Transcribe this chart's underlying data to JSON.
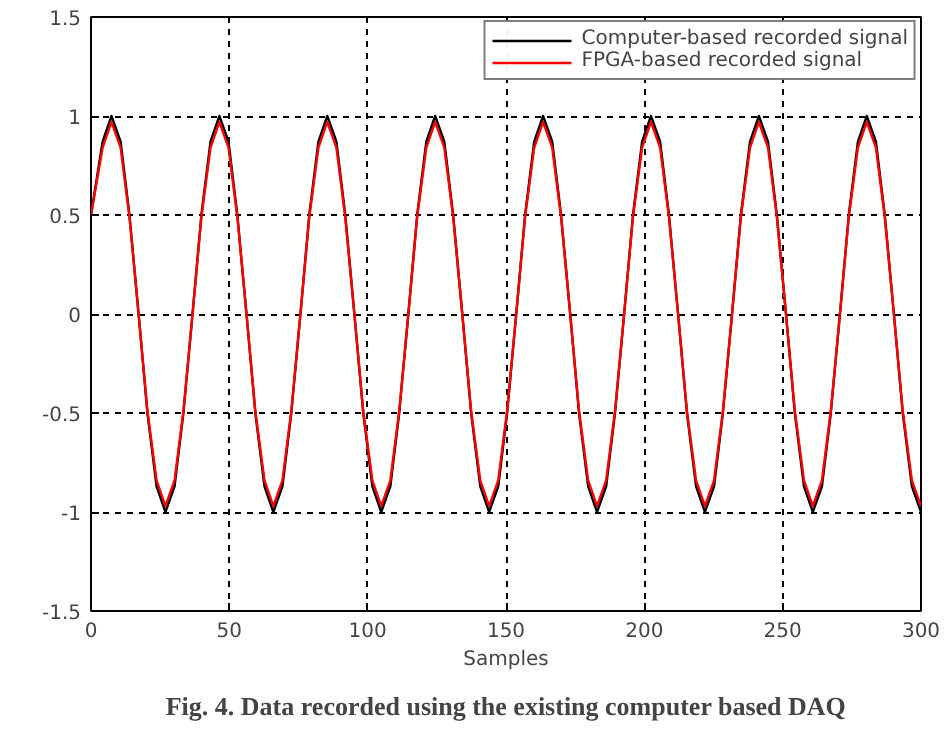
{
  "chart_data": {
    "type": "line",
    "xlabel": "Samples",
    "annotations": [
      "Fig. 4. Data recorded using the existing computer based DAQ"
    ],
    "x": [
      0,
      4.2,
      7.4,
      10.7,
      13.9,
      17.2,
      20.4,
      23.7,
      26.9,
      30.2,
      33.4,
      36.7,
      39.9,
      43.2,
      46.4,
      49.7,
      52.9,
      56.2,
      59.4,
      62.7,
      65.9,
      69.2,
      72.4,
      75.7,
      78.9,
      82.2,
      85.4,
      88.7,
      91.9,
      95.2,
      98.4,
      101.7,
      104.9,
      108.2,
      111.4,
      114.7,
      117.9,
      121.2,
      124.4,
      127.7,
      130.9,
      134.2,
      137.4,
      140.7,
      143.9,
      147.2,
      150.4,
      153.7,
      156.9,
      160.2,
      163.4,
      166.7,
      169.9,
      173.2,
      176.4,
      179.7,
      182.9,
      186.2,
      189.4,
      192.7,
      195.9,
      199.2,
      202.4,
      205.7,
      208.9,
      212.2,
      215.4,
      218.7,
      221.9,
      225.2,
      228.4,
      231.7,
      234.9,
      238.2,
      241.4,
      244.7,
      247.9,
      251.2,
      254.4,
      257.7,
      260.9,
      264.2,
      267.4,
      270.7,
      273.9,
      277.2,
      280.4,
      283.7,
      286.9,
      290.2,
      293.4,
      296.7,
      300
    ],
    "series": [
      {
        "name": "Computer-based recorded signal",
        "color": "#000000",
        "values": [
          0.5,
          0.87,
          1,
          0.87,
          0.5,
          0,
          -0.5,
          -0.87,
          -1,
          -0.87,
          -0.5,
          0,
          0.5,
          0.87,
          1,
          0.87,
          0.5,
          0,
          -0.5,
          -0.87,
          -1,
          -0.87,
          -0.5,
          0,
          0.5,
          0.87,
          1,
          0.87,
          0.5,
          0,
          -0.5,
          -0.87,
          -1,
          -0.87,
          -0.5,
          0,
          0.5,
          0.87,
          1,
          0.87,
          0.5,
          0,
          -0.5,
          -0.87,
          -1,
          -0.87,
          -0.5,
          0,
          0.5,
          0.87,
          1,
          0.87,
          0.5,
          0,
          -0.5,
          -0.87,
          -1,
          -0.87,
          -0.5,
          0,
          0.5,
          0.87,
          1,
          0.87,
          0.5,
          0,
          -0.5,
          -0.87,
          -1,
          -0.87,
          -0.5,
          0,
          0.5,
          0.87,
          1,
          0.87,
          0.5,
          0,
          -0.5,
          -0.87,
          -1,
          -0.87,
          -0.5,
          0,
          0.5,
          0.87,
          1,
          0.87,
          0.5,
          0,
          -0.5,
          -0.87,
          -1
        ]
      },
      {
        "name": "FPGA-based recorded signal",
        "color": "#ff0000",
        "values": [
          0.5,
          0.84,
          0.97,
          0.84,
          0.49,
          0,
          -0.49,
          -0.84,
          -0.97,
          -0.84,
          -0.49,
          0,
          0.49,
          0.84,
          0.97,
          0.84,
          0.49,
          0,
          -0.49,
          -0.84,
          -0.97,
          -0.84,
          -0.49,
          0,
          0.49,
          0.84,
          0.97,
          0.84,
          0.49,
          0,
          -0.49,
          -0.84,
          -0.97,
          -0.84,
          -0.49,
          0,
          0.49,
          0.84,
          0.97,
          0.84,
          0.49,
          0,
          -0.49,
          -0.84,
          -0.97,
          -0.84,
          -0.49,
          0,
          0.49,
          0.84,
          0.97,
          0.84,
          0.49,
          0,
          -0.49,
          -0.84,
          -0.97,
          -0.84,
          -0.49,
          0,
          0.49,
          0.84,
          0.97,
          0.84,
          0.49,
          0,
          -0.49,
          -0.84,
          -0.97,
          -0.84,
          -0.49,
          0,
          0.49,
          0.84,
          0.97,
          0.84,
          0.49,
          0,
          -0.49,
          -0.84,
          -0.97,
          -0.84,
          -0.49,
          0,
          0.49,
          0.84,
          0.97,
          0.84,
          0.49,
          0,
          -0.49,
          -0.84,
          -0.97
        ]
      }
    ],
    "xlim": [
      0,
      300
    ],
    "ylim": [
      -1.5,
      1.5
    ],
    "xticks": [
      0,
      50,
      100,
      150,
      200,
      250,
      300
    ],
    "yticks": [
      -1.5,
      -1,
      -0.5,
      0,
      0.5,
      1,
      1.5
    ],
    "grid": true,
    "legend": "top right",
    "line_style": "solid"
  }
}
